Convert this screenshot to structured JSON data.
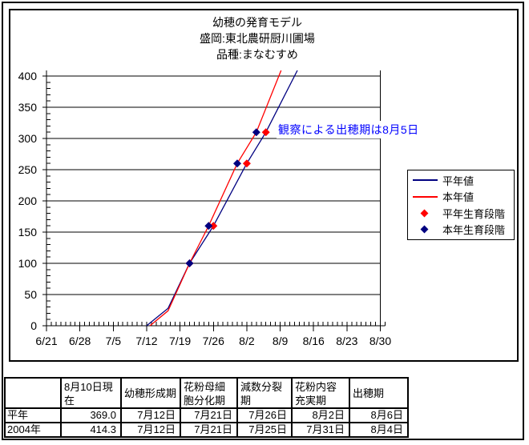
{
  "page": {
    "background": "#FFFFFF",
    "border_color": "#000000"
  },
  "chart_data": {
    "type": "line",
    "title_lines": [
      "幼穂の発育モデル",
      "盛岡:東北農研厨川圃場",
      "品種:まなむすめ"
    ],
    "xlabel": "",
    "ylabel": "",
    "x_axis": {
      "start_date": "6/21",
      "end_date": "8/31",
      "days_total": 71,
      "major_tick_every_days": 7,
      "minor_tick_every_days": 1
    },
    "x_tick_labels": [
      "6/21",
      "6/28",
      "7/5",
      "7/12",
      "7/19",
      "7/26",
      "8/2",
      "8/9",
      "8/16",
      "8/23",
      "8/30"
    ],
    "y_axis": {
      "min": 0,
      "max": 400,
      "major": 50,
      "minor": 10,
      "tick_labels": [
        "0",
        "50",
        "100",
        "150",
        "200",
        "250",
        "300",
        "350",
        "400"
      ]
    },
    "grid": "horizontal-major-only",
    "legend_position": "right",
    "series": [
      {
        "id": "normal-year-line",
        "name": "平年値",
        "kind": "line",
        "color": "#000080",
        "points": [
          {
            "date": "7/12",
            "d": 21.0,
            "v": 0
          },
          {
            "date": "7/16",
            "d": 25.5,
            "v": 28
          },
          {
            "date": "7/21",
            "d": 30,
            "v": 100
          },
          {
            "date": "7/26",
            "d": 35,
            "v": 160
          },
          {
            "date": "8/2",
            "d": 42,
            "v": 260
          },
          {
            "date": "8/6",
            "d": 46,
            "v": 310
          },
          {
            "date": "8/12",
            "d": 52.6,
            "v": 409
          }
        ]
      },
      {
        "id": "current-year-line",
        "name": "本年値",
        "kind": "line",
        "color": "#FF0000",
        "points": [
          {
            "date": "7/12",
            "d": 21.7,
            "v": 0
          },
          {
            "date": "7/16",
            "d": 25.5,
            "v": 24
          },
          {
            "date": "7/21",
            "d": 30,
            "v": 100
          },
          {
            "date": "7/25",
            "d": 34,
            "v": 160
          },
          {
            "date": "7/31",
            "d": 40,
            "v": 260
          },
          {
            "date": "8/4",
            "d": 44,
            "v": 310
          },
          {
            "date": "8/9",
            "d": 49.2,
            "v": 409
          }
        ]
      },
      {
        "id": "normal-year-stage",
        "name": "平年生育段階",
        "kind": "markers",
        "color": "#FF0000",
        "points": [
          {
            "date": "7/21",
            "d": 30,
            "v": 100
          },
          {
            "date": "7/26",
            "d": 35,
            "v": 160
          },
          {
            "date": "8/2",
            "d": 42,
            "v": 260
          },
          {
            "date": "8/6",
            "d": 46,
            "v": 310
          }
        ]
      },
      {
        "id": "current-year-stage",
        "name": "本年生育段階",
        "kind": "markers",
        "color": "#000080",
        "points": [
          {
            "date": "7/21",
            "d": 30,
            "v": 100
          },
          {
            "date": "7/25",
            "d": 34,
            "v": 160
          },
          {
            "date": "7/31",
            "d": 40,
            "v": 260
          },
          {
            "date": "8/4",
            "d": 44,
            "v": 310
          }
        ]
      }
    ]
  },
  "annotation": {
    "text": "観察による出穂期は8月5日",
    "color": "#0000FF"
  },
  "legend": {
    "items": [
      {
        "label": "平年値",
        "sample": "line",
        "color": "#000080"
      },
      {
        "label": "本年値",
        "sample": "line",
        "color": "#FF0000"
      },
      {
        "label": "平年生育段階",
        "sample": "diamond",
        "color": "#FF0000"
      },
      {
        "label": "本年生育段階",
        "sample": "diamond",
        "color": "#000080"
      }
    ]
  },
  "table": {
    "headers": [
      "",
      "8月10日現在",
      "幼穂形成期",
      "花粉母細胞分化期",
      "減数分裂期",
      "花粉内容充実期",
      "出穂期"
    ],
    "rows": [
      {
        "label": "平年",
        "cells": [
          "369.0",
          "7月12日",
          "7月21日",
          "7月26日",
          "8月2日",
          "8月6日"
        ]
      },
      {
        "label": "2004年",
        "cells": [
          "414.3",
          "7月12日",
          "7月21日",
          "7月25日",
          "7月31日",
          "8月4日"
        ]
      }
    ]
  }
}
